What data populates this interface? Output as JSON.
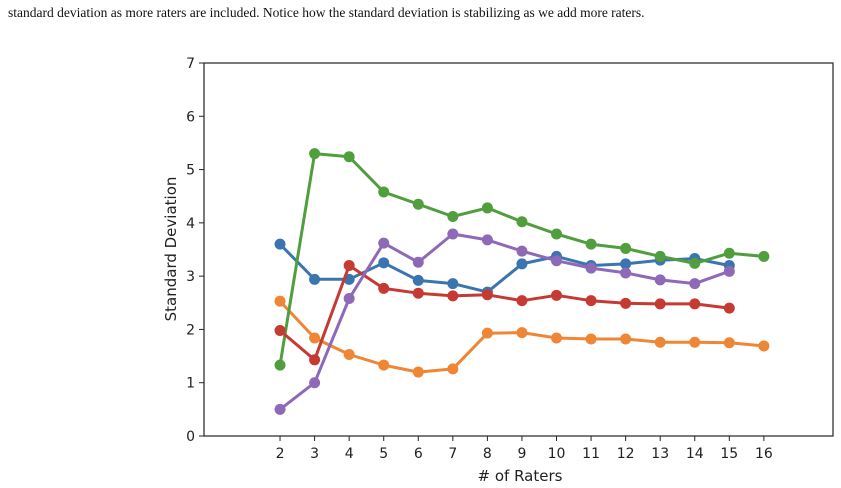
{
  "caption": "standard deviation as more raters are included. Notice how the standard deviation is stabilizing as we add more raters.",
  "chart_data": {
    "type": "line",
    "xlabel": "# of Raters",
    "ylabel": "Standard Deviation",
    "x_ticks": [
      2,
      3,
      4,
      5,
      6,
      7,
      8,
      9,
      10,
      11,
      12,
      13,
      14,
      15,
      16
    ],
    "y_ticks": [
      0,
      1,
      2,
      3,
      4,
      5,
      6,
      7
    ],
    "xlim": [
      -0.2,
      18
    ],
    "ylim": [
      0,
      7
    ],
    "grid": false,
    "series": [
      {
        "color": "#3a75b0",
        "x": [
          2,
          3,
          4,
          5,
          6,
          7,
          8,
          9,
          10,
          11,
          12,
          13,
          14,
          15
        ],
        "values": [
          3.6,
          2.94,
          2.94,
          3.25,
          2.92,
          2.86,
          2.7,
          3.23,
          3.37,
          3.2,
          3.23,
          3.3,
          3.33,
          3.2
        ]
      },
      {
        "color": "#ef8636",
        "x": [
          2,
          3,
          4,
          5,
          6,
          7,
          8,
          9,
          10,
          11,
          12,
          13,
          14,
          15,
          16
        ],
        "values": [
          2.53,
          1.84,
          1.53,
          1.33,
          1.2,
          1.26,
          1.93,
          1.94,
          1.84,
          1.82,
          1.82,
          1.76,
          1.76,
          1.75,
          1.69
        ]
      },
      {
        "color": "#519e3e",
        "x": [
          2,
          3,
          4,
          5,
          6,
          7,
          8,
          9,
          10,
          11,
          12,
          13,
          14,
          15,
          16
        ],
        "values": [
          1.33,
          5.3,
          5.24,
          4.58,
          4.35,
          4.12,
          4.28,
          4.02,
          3.79,
          3.6,
          3.52,
          3.37,
          3.24,
          3.43,
          3.37
        ]
      },
      {
        "color": "#c53a32",
        "x": [
          2,
          3,
          4,
          5,
          6,
          7,
          8,
          9,
          10,
          11,
          12,
          13,
          14,
          15
        ],
        "values": [
          1.98,
          1.43,
          3.2,
          2.77,
          2.68,
          2.63,
          2.65,
          2.54,
          2.64,
          2.54,
          2.49,
          2.48,
          2.48,
          2.4
        ]
      },
      {
        "color": "#8d69b8",
        "x": [
          2,
          3,
          4,
          5,
          6,
          7,
          8,
          9,
          10,
          11,
          12,
          13,
          14,
          15
        ],
        "values": [
          0.5,
          1.0,
          2.58,
          3.62,
          3.26,
          3.79,
          3.68,
          3.47,
          3.29,
          3.15,
          3.06,
          2.93,
          2.86,
          3.09
        ]
      }
    ]
  }
}
